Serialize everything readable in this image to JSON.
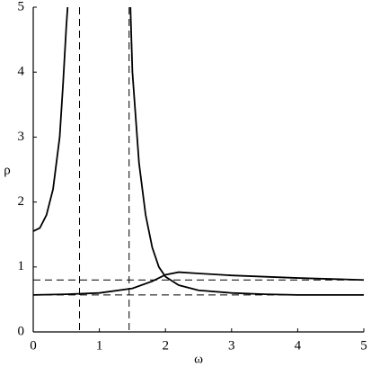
{
  "chart_data": {
    "type": "line",
    "x_label": "ω",
    "y_label": "ρ",
    "xlim": [
      0,
      5
    ],
    "ylim": [
      0,
      5
    ],
    "xticks": [
      0,
      1,
      2,
      3,
      4,
      5
    ],
    "yticks": [
      0,
      1,
      2,
      3,
      4,
      5
    ],
    "series": [
      {
        "color": "#000000",
        "x": [
          0,
          0.1,
          0.2,
          0.3,
          0.4,
          0.45,
          0.5,
          0.52,
          1.0,
          1.47,
          1.5,
          1.6,
          1.7,
          1.8,
          1.9,
          2.0,
          2.2,
          2.5,
          3,
          3.5,
          4,
          5
        ],
        "values": [
          1.55,
          1.6,
          1.8,
          2.2,
          3.0,
          3.8,
          4.7,
          5,
          null,
          5,
          4.0,
          2.6,
          1.8,
          1.3,
          1.0,
          0.85,
          0.72,
          0.64,
          0.6,
          0.58,
          0.57,
          0.57
        ]
      },
      {
        "color": "#000000",
        "x": [
          0,
          0.5,
          1,
          1.5,
          1.8,
          2,
          2.2,
          2.5,
          3,
          4,
          5
        ],
        "values": [
          0.57,
          0.58,
          0.6,
          0.67,
          0.78,
          0.88,
          0.92,
          0.9,
          0.87,
          0.83,
          0.8
        ]
      }
    ],
    "vlines": [
      0.7,
      1.45
    ],
    "hlines": [
      0.8,
      0.57
    ]
  }
}
